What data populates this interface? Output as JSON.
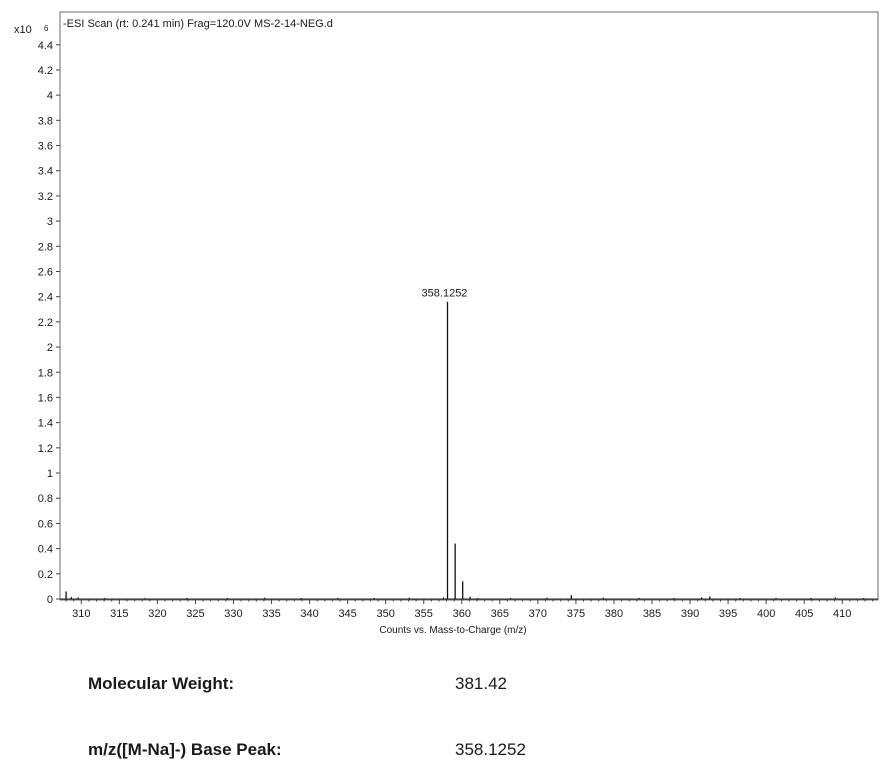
{
  "chart_data": {
    "type": "bar",
    "title": "-ESI Scan (rt: 0.241 min) Frag=120.0V MS-2-14-NEG.d",
    "y_multiplier_label": "x10",
    "y_exponent_label": "6",
    "xlabel": "Counts vs. Mass-to-Charge (m/z)",
    "ylabel": "",
    "xlim": [
      307.2,
      414.7
    ],
    "ylim": [
      0,
      4.66
    ],
    "x_ticks": [
      "310",
      "315",
      "320",
      "325",
      "330",
      "335",
      "340",
      "345",
      "350",
      "355",
      "360",
      "365",
      "370",
      "375",
      "380",
      "385",
      "390",
      "395",
      "400",
      "405",
      "410"
    ],
    "y_ticks": [
      "0",
      "0.2",
      "0.4",
      "0.6",
      "0.8",
      "1",
      "1.2",
      "1.4",
      "1.6",
      "1.8",
      "2",
      "2.2",
      "2.4",
      "2.6",
      "2.8",
      "3",
      "3.2",
      "3.4",
      "3.6",
      "3.8",
      "4",
      "4.2",
      "4.4"
    ],
    "grid": false,
    "peaks": [
      {
        "x": 358.1252,
        "y": 2.36,
        "label": "358.1252"
      },
      {
        "x": 359.13,
        "y": 0.44
      },
      {
        "x": 360.12,
        "y": 0.14
      },
      {
        "x": 357.6,
        "y": 0.012
      },
      {
        "x": 361.1,
        "y": 0.018
      },
      {
        "x": 362.1,
        "y": 0.008
      },
      {
        "x": 308.0,
        "y": 0.06
      },
      {
        "x": 308.7,
        "y": 0.015
      },
      {
        "x": 309.6,
        "y": 0.012
      },
      {
        "x": 313.1,
        "y": 0.008
      },
      {
        "x": 318.4,
        "y": 0.008
      },
      {
        "x": 323.9,
        "y": 0.008
      },
      {
        "x": 329.2,
        "y": 0.008
      },
      {
        "x": 334.1,
        "y": 0.01
      },
      {
        "x": 338.9,
        "y": 0.008
      },
      {
        "x": 343.7,
        "y": 0.008
      },
      {
        "x": 348.5,
        "y": 0.008
      },
      {
        "x": 353.1,
        "y": 0.01
      },
      {
        "x": 366.4,
        "y": 0.008
      },
      {
        "x": 371.2,
        "y": 0.01
      },
      {
        "x": 374.4,
        "y": 0.03
      },
      {
        "x": 378.6,
        "y": 0.01
      },
      {
        "x": 383.3,
        "y": 0.008
      },
      {
        "x": 387.9,
        "y": 0.008
      },
      {
        "x": 391.5,
        "y": 0.012
      },
      {
        "x": 392.6,
        "y": 0.02
      },
      {
        "x": 396.6,
        "y": 0.008
      },
      {
        "x": 401.3,
        "y": 0.008
      },
      {
        "x": 405.9,
        "y": 0.008
      },
      {
        "x": 409.1,
        "y": 0.012
      },
      {
        "x": 412.8,
        "y": 0.008
      }
    ]
  },
  "info": {
    "molecular_weight_label": "Molecular Weight:",
    "molecular_weight_value": "381.42",
    "base_peak_label": "m/z([M-Na]-) Base Peak:",
    "base_peak_value": "358.1252"
  }
}
